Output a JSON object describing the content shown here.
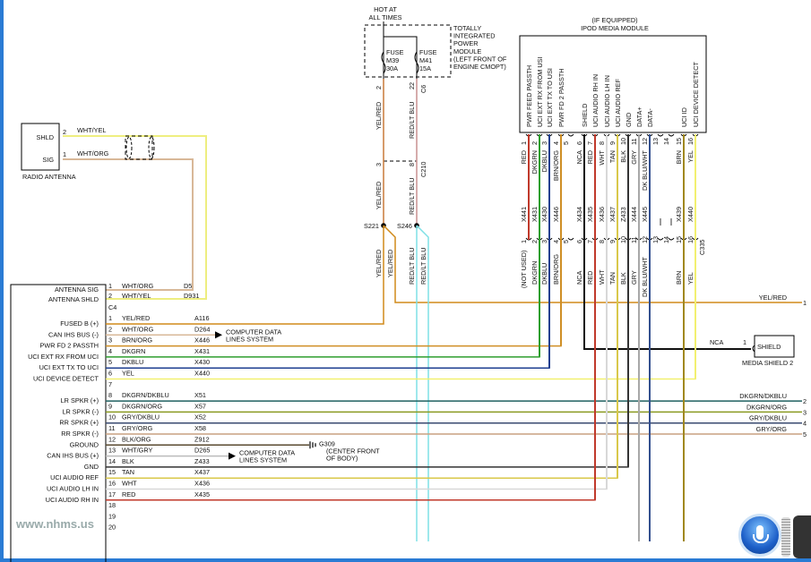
{
  "power": {
    "hot_label_1": "HOT AT",
    "hot_label_2": "ALL TIMES",
    "module_text": [
      "TOTALLY",
      "INTEGRATED",
      "POWER",
      "MODULE",
      "(LEFT FRONT OF",
      "ENGINE CMOPT)"
    ],
    "fuses": [
      {
        "name": "FUSE",
        "id": "M39",
        "rating": "30A",
        "pin": "2",
        "wire": "YEL/RED",
        "pin_c210": "3"
      },
      {
        "name": "FUSE",
        "id": "M41",
        "rating": "15A",
        "pin": "22",
        "wire": "RED/LT BLU",
        "pin_c210": "8"
      }
    ],
    "connector_c6": "C6",
    "connector_c210": "C210",
    "splices": [
      {
        "id": "S221",
        "wire": "YEL/RED"
      },
      {
        "id": "S246",
        "wire": "RED/LT BLU"
      }
    ]
  },
  "antenna": {
    "label": "RADIO ANTENNA",
    "pins": [
      {
        "pin": "2",
        "name": "SHLD",
        "wire": "WHT/YEL"
      },
      {
        "pin": "1",
        "name": "SIG",
        "wire": "WHT/ORG"
      }
    ]
  },
  "radio": {
    "antenna_rows": [
      {
        "label": "ANTENNA SIG",
        "pin": "1",
        "wire": "WHT/ORG",
        "circuit": "D5"
      },
      {
        "label": "ANTENNA SHLD",
        "pin": "2",
        "wire": "WHT/YEL",
        "circuit": "D931"
      }
    ],
    "connector": "C4",
    "rows": [
      {
        "pin": "1",
        "label": "FUSED B (+)",
        "wire": "YEL/RED",
        "circuit": "A116"
      },
      {
        "pin": "2",
        "label": "CAN IHS BUS (-)",
        "wire": "WHT/ORG",
        "circuit": "D264"
      },
      {
        "pin": "3",
        "label": "PWR FD 2 PASSTH",
        "wire": "BRN/ORG",
        "circuit": "X446"
      },
      {
        "pin": "4",
        "label": "UCI EXT RX FROM UCI",
        "wire": "DKGRN",
        "circuit": "X431"
      },
      {
        "pin": "5",
        "label": "UCI EXT TX TO UCI",
        "wire": "DKBLU",
        "circuit": "X430"
      },
      {
        "pin": "6",
        "label": "UCI DEVICE DETECT",
        "wire": "YEL",
        "circuit": "X440"
      },
      {
        "pin": "7",
        "label": "",
        "wire": "",
        "circuit": ""
      },
      {
        "pin": "8",
        "label": "LR SPKR (+)",
        "wire": "DKGRN/DKBLU",
        "circuit": "X51"
      },
      {
        "pin": "9",
        "label": "LR SPKR (-)",
        "wire": "DKGRN/ORG",
        "circuit": "X57"
      },
      {
        "pin": "10",
        "label": "RR SPKR (+)",
        "wire": "GRY/DKBLU",
        "circuit": "X52"
      },
      {
        "pin": "11",
        "label": "RR SPKR (-)",
        "wire": "GRY/ORG",
        "circuit": "X58"
      },
      {
        "pin": "12",
        "label": "GROUND",
        "wire": "BLK/ORG",
        "circuit": "Z912"
      },
      {
        "pin": "13",
        "label": "CAN IHS BUS (+)",
        "wire": "WHT/GRY",
        "circuit": "D265"
      },
      {
        "pin": "14",
        "label": "GND",
        "wire": "BLK",
        "circuit": "Z433"
      },
      {
        "pin": "15",
        "label": "UCI AUDIO REF",
        "wire": "TAN",
        "circuit": "X437"
      },
      {
        "pin": "16",
        "label": "UCI AUDIO LH IN",
        "wire": "WHT",
        "circuit": "X436"
      },
      {
        "pin": "17",
        "label": "UCI AUDIO RH IN",
        "wire": "RED",
        "circuit": "X435"
      },
      {
        "pin": "18",
        "label": "",
        "wire": "",
        "circuit": ""
      },
      {
        "pin": "19",
        "label": "",
        "wire": "",
        "circuit": ""
      },
      {
        "pin": "20",
        "label": "",
        "wire": "",
        "circuit": ""
      }
    ],
    "computer_data_1": "COMPUTER DATA",
    "computer_data_2": "LINES SYSTEM",
    "ground_id": "G309",
    "ground_loc_1": "(CENTER FRONT",
    "ground_loc_2": "OF BODY)"
  },
  "ipod": {
    "title_1": "(IF EQUIPPED)",
    "title_2": "IPOD MEDIA MODULE",
    "connector": "C335",
    "pins": [
      {
        "pin": "1",
        "label": "PWR FEED PASSTH",
        "wire_top": "RED",
        "circuit": "X441",
        "wire_bottom": "(NOT USED)",
        "color": "#c0392b"
      },
      {
        "pin": "2",
        "label": "UCI EXT RX FROM USI",
        "wire_top": "DKGRN",
        "circuit": "X431",
        "wire_bottom": "DKGRN",
        "color": "#2e9e2e"
      },
      {
        "pin": "3",
        "label": "UCI EXT TX TO USI",
        "wire_top": "DKBLU",
        "circuit": "X430",
        "wire_bottom": "DKBLU",
        "color": "#1f3f90"
      },
      {
        "pin": "4",
        "label": "PWR FD 2 PASSTH",
        "wire_top": "BRN/ORG",
        "circuit": "X446",
        "wire_bottom": "BRN/ORG",
        "color": "#cf8f25"
      },
      {
        "pin": "5",
        "label": "",
        "wire_top": "",
        "circuit": "",
        "wire_bottom": "",
        "color": ""
      },
      {
        "pin": "6",
        "label": "SHIELD",
        "wire_top": "NCA",
        "circuit": "X434",
        "wire_bottom": "NCA",
        "color": "#111111"
      },
      {
        "pin": "7",
        "label": "UCI AUDIO RH IN",
        "wire_top": "RED",
        "circuit": "X435",
        "wire_bottom": "RED",
        "color": "#c0392b"
      },
      {
        "pin": "8",
        "label": "UCI AUDIO LH IN",
        "wire_top": "WHT",
        "circuit": "X436",
        "wire_bottom": "WHT",
        "color": "#d8d8d8"
      },
      {
        "pin": "9",
        "label": "UCI AUDIO REF",
        "wire_top": "TAN",
        "circuit": "X437",
        "wire_bottom": "TAN",
        "color": "#d9c84a"
      },
      {
        "pin": "10",
        "label": "GND",
        "wire_top": "BLK",
        "circuit": "Z433",
        "wire_bottom": "BLK",
        "color": "#333333"
      },
      {
        "pin": "11",
        "label": "DATA+",
        "wire_top": "GRY",
        "circuit": "X444",
        "wire_bottom": "GRY",
        "color": "#a8a8a8"
      },
      {
        "pin": "12",
        "label": "DATA-",
        "wire_top": "DK BLU/WHT",
        "circuit": "X445",
        "wire_bottom": "DK BLU/WHT",
        "color": "#34508f"
      },
      {
        "pin": "13",
        "label": "",
        "wire_top": "",
        "circuit": "",
        "wire_bottom": "",
        "color": ""
      },
      {
        "pin": "14",
        "label": "",
        "wire_top": "",
        "circuit": "",
        "wire_bottom": "",
        "color": ""
      },
      {
        "pin": "15",
        "label": "UCI ID",
        "wire_top": "BRN",
        "circuit": "X439",
        "wire_bottom": "BRN",
        "color": "#a08820"
      },
      {
        "pin": "16",
        "label": "UCI DEVICE DETECT",
        "wire_top": "YEL",
        "circuit": "X440",
        "wire_bottom": "YEL",
        "color": "#f2f070"
      }
    ]
  },
  "right_outputs": [
    {
      "wire": "YEL/RED",
      "num": "1"
    },
    {
      "wire": "DKGRN/DKBLU",
      "num": "2"
    },
    {
      "wire": "DKGRN/ORG",
      "num": "3"
    },
    {
      "wire": "GRY/DKBLU",
      "num": "4"
    },
    {
      "wire": "GRY/ORG",
      "num": "5"
    }
  ],
  "media_shield": {
    "box_label": "SHIELD",
    "name": "MEDIA SHIELD 2",
    "pin": "1",
    "wire": "NCA"
  },
  "watermark": "www.nhms.us",
  "colors": {
    "frame": "#2a7bd4",
    "yel_red": "#c87a3a",
    "red_lt_blu_upper": "#c99090",
    "red_lt_blu_lower": "#7fe0e6",
    "wht_org": "#d8b898",
    "wht_yel": "#eeee80",
    "dkgrn_dkblu": "#1f6060",
    "dkgrn_org": "#8a9a20",
    "gry_dkblu": "#3a4a70",
    "gry_org": "#c8a080",
    "blk_org": "#5a4a30",
    "wht_gry": "#bbbbbb"
  }
}
